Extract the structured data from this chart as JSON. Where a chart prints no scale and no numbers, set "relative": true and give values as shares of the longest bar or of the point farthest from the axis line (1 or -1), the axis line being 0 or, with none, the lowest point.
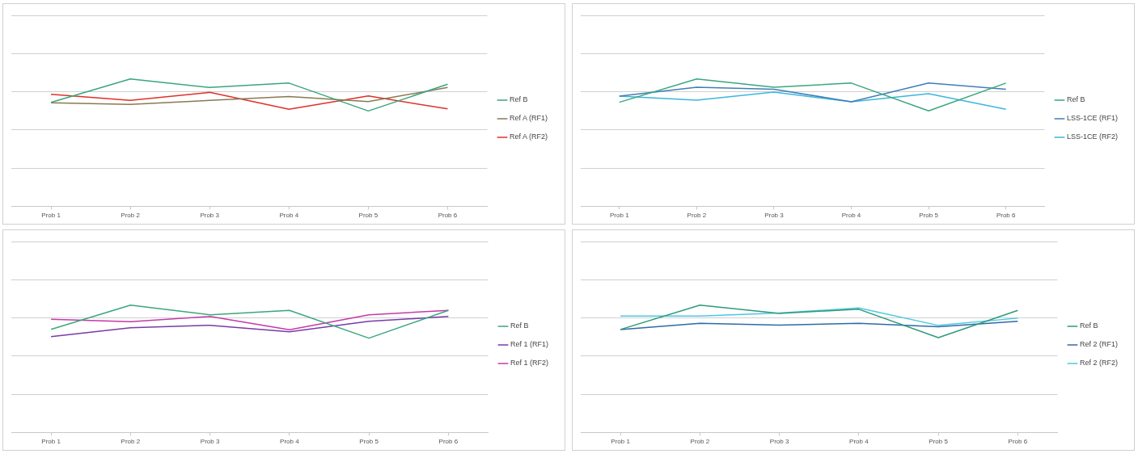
{
  "chart_data": [
    {
      "type": "line",
      "categories": [
        "Prob 1",
        "Prob 2",
        "Prob 3",
        "Prob 4",
        "Prob 5",
        "Prob 6"
      ],
      "relative": true,
      "grid": "y",
      "legend": "right",
      "marker": "none",
      "line_style": "solid",
      "series": [
        {
          "name": "Ref B",
          "color": "#3aa67e",
          "values": [
            0.816,
            1,
            0.933,
            0.968,
            0.749,
            0.959
          ]
        },
        {
          "name": "Ref A (RF1)",
          "color": "#8a7a52",
          "values": [
            0.813,
            0.8,
            0.832,
            0.863,
            0.822,
            0.933
          ]
        },
        {
          "name": "Ref A (RF2)",
          "color": "#e0302a",
          "values": [
            0.879,
            0.832,
            0.895,
            0.762,
            0.867,
            0.765
          ]
        }
      ]
    },
    {
      "type": "line",
      "categories": [
        "Prob 1",
        "Prob 2",
        "Prob 3",
        "Prob 4",
        "Prob 5",
        "Prob 6"
      ],
      "relative": true,
      "grid": "y",
      "legend": "right",
      "marker": "none",
      "line_style": "solid",
      "series": [
        {
          "name": "Ref B",
          "color": "#3aa67e",
          "values": [
            0.817,
            1,
            0.936,
            0.968,
            0.75,
            0.968
          ]
        },
        {
          "name": "LSS-1CE (RF1)",
          "color": "#3f7fb8",
          "values": [
            0.865,
            0.936,
            0.92,
            0.821,
            0.968,
            0.92
          ]
        },
        {
          "name": "LSS-1CE (RF2)",
          "color": "#3cb6dc",
          "values": [
            0.865,
            0.833,
            0.897,
            0.821,
            0.885,
            0.763
          ]
        }
      ]
    },
    {
      "type": "line",
      "categories": [
        "Prob 1",
        "Prob 2",
        "Prob 3",
        "Prob 4",
        "Prob 5",
        "Prob 6"
      ],
      "relative": true,
      "grid": "y",
      "legend": "right",
      "marker": "none",
      "line_style": "solid",
      "series": [
        {
          "name": "Ref B",
          "color": "#3aa67e",
          "values": [
            0.81,
            1,
            0.924,
            0.959,
            0.741,
            0.959
          ]
        },
        {
          "name": "Ref 1 (RF1)",
          "color": "#7a3aa8",
          "values": [
            0.753,
            0.823,
            0.842,
            0.791,
            0.873,
            0.911
          ]
        },
        {
          "name": "Ref 1 (RF2)",
          "color": "#c43aa8",
          "values": [
            0.889,
            0.87,
            0.911,
            0.807,
            0.924,
            0.959
          ]
        }
      ]
    },
    {
      "type": "line",
      "categories": [
        "Prob 1",
        "Prob 2",
        "Prob 3",
        "Prob 4",
        "Prob 5",
        "Prob 6"
      ],
      "relative": true,
      "grid": "y",
      "legend": "right",
      "marker": "none",
      "line_style": "solid",
      "series": [
        {
          "name": "Ref B",
          "color": "#2f9a7a",
          "values": [
            0.809,
            1,
            0.936,
            0.968,
            0.745,
            0.959
          ]
        },
        {
          "name": "Ref 2 (RF1)",
          "color": "#2f6aa8",
          "values": [
            0.809,
            0.857,
            0.844,
            0.857,
            0.831,
            0.873
          ]
        },
        {
          "name": "Ref 2 (RF2)",
          "color": "#4cc8e0",
          "values": [
            0.914,
            0.914,
            0.939,
            0.978,
            0.841,
            0.898
          ]
        }
      ]
    }
  ]
}
